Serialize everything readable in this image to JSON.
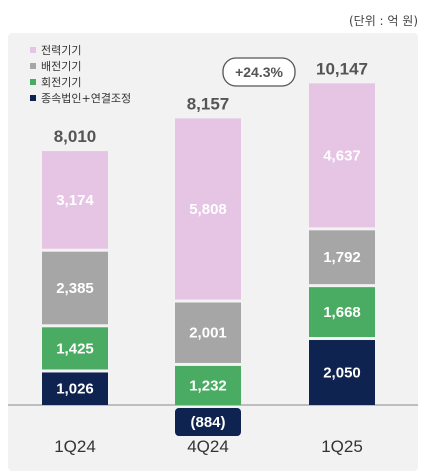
{
  "unit_label": "(단위 : 억 원)",
  "badge": "+24.3%",
  "colors": {
    "background": "#f2f2f2",
    "label_text": "#ffffff",
    "total_text": "#555555",
    "category_text": "#333333"
  },
  "chart_data": {
    "type": "bar",
    "stacked": true,
    "categories": [
      "1Q24",
      "4Q24",
      "1Q25"
    ],
    "totals": [
      8010,
      8157,
      10147
    ],
    "total_labels": [
      "8,010",
      "8,157",
      "10,147"
    ],
    "series": [
      {
        "name": "종속법인+연결조정",
        "color": "#0e2350",
        "values": [
          1026,
          -884,
          2050
        ],
        "labels": [
          "1,026",
          "(884)",
          "2,050"
        ]
      },
      {
        "name": "회전기기",
        "color": "#4aab63",
        "values": [
          1425,
          1232,
          1668
        ],
        "labels": [
          "1,425",
          "1,232",
          "1,668"
        ]
      },
      {
        "name": "배전기기",
        "color": "#a6a6a6",
        "values": [
          2385,
          2001,
          1792
        ],
        "labels": [
          "2,385",
          "2,001",
          "1,792"
        ]
      },
      {
        "name": "전력기기",
        "color": "#e6c4e4",
        "values": [
          3174,
          5808,
          4637
        ],
        "labels": [
          "3,174",
          "5,808",
          "4,637"
        ]
      }
    ],
    "legend_order": [
      "전력기기",
      "배전기기",
      "회전기기",
      "종속법인+연결조정"
    ],
    "legend_position": "top-left",
    "annotation": "+24.3%"
  }
}
